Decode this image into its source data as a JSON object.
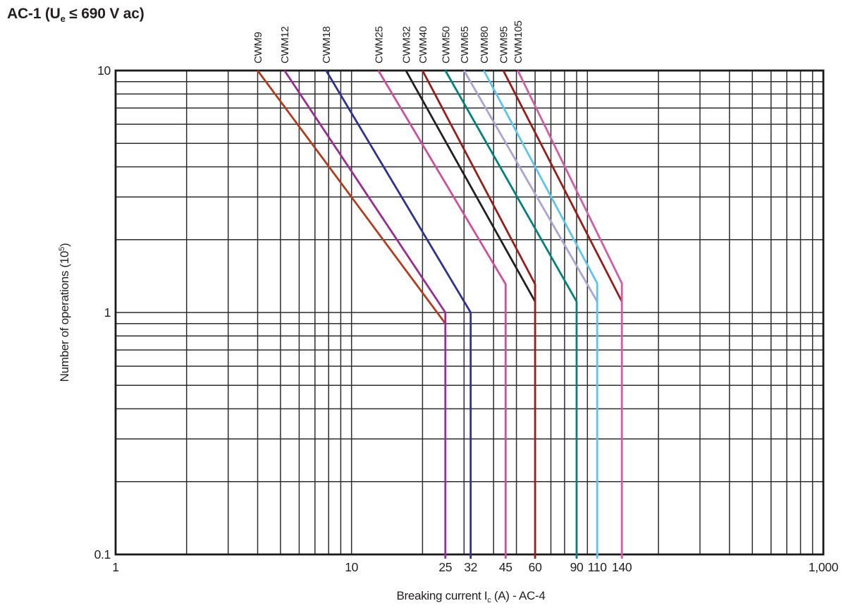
{
  "title": {
    "prefix": "AC-1 (U",
    "subscript": "e",
    "suffix": " ≤ 690 V ac)"
  },
  "chart_data": {
    "type": "line",
    "scale": "log-log",
    "x_axis": {
      "title": {
        "prefix": "Breaking current I",
        "subscript": "c",
        "suffix": " (A) - AC-4"
      },
      "scale": "log",
      "range": [
        1,
        1000
      ],
      "ticks": [
        {
          "value": 1,
          "label": "1"
        },
        {
          "value": 10,
          "label": "10"
        },
        {
          "value": 25,
          "label": "25"
        },
        {
          "value": 32,
          "label": "32"
        },
        {
          "value": 45,
          "label": "45"
        },
        {
          "value": 60,
          "label": "60"
        },
        {
          "value": 90,
          "label": "90"
        },
        {
          "value": 110,
          "label": "110"
        },
        {
          "value": 140,
          "label": "140"
        },
        {
          "value": 1000,
          "label": "1,000"
        }
      ],
      "minor_gridlines": [
        2,
        3,
        4,
        5,
        6,
        7,
        8,
        9,
        10,
        20,
        30,
        40,
        50,
        60,
        70,
        80,
        90,
        100,
        200,
        300,
        400,
        500,
        600,
        700,
        800,
        900
      ]
    },
    "y_axis": {
      "title": {
        "prefix": "Number of operations (10",
        "superscript": "5",
        "suffix": ")"
      },
      "scale": "log",
      "range": [
        0.1,
        10
      ],
      "ticks": [
        {
          "value": 10,
          "label": "10"
        },
        {
          "value": 1,
          "label": "1"
        },
        {
          "value": 0.1,
          "label": "0.1"
        }
      ],
      "minor_gridlines": [
        0.2,
        0.3,
        0.4,
        0.5,
        0.6,
        0.7,
        0.8,
        0.9,
        1,
        2,
        3,
        4,
        5,
        6,
        7,
        8,
        9
      ]
    },
    "grid": "on",
    "grid_color": "#2d2d2d",
    "border_color": "#1a1a1a",
    "legend_position": "labels-above-curves",
    "series": [
      {
        "name": "CWM9",
        "color": "#b23c1e",
        "points": [
          [
            4.0,
            10
          ],
          [
            25,
            0.9
          ]
        ],
        "drops_below_axis": false
      },
      {
        "name": "CWM12",
        "color": "#982d98",
        "points": [
          [
            5.2,
            10
          ],
          [
            25,
            1.0
          ],
          [
            25,
            0.1
          ]
        ],
        "drops_below_axis": true
      },
      {
        "name": "CWM18",
        "color": "#2e3192",
        "points": [
          [
            7.8,
            10
          ],
          [
            32,
            1.0
          ],
          [
            32,
            0.1
          ]
        ],
        "drops_below_axis": true
      },
      {
        "name": "CWM25",
        "color": "#cf4f9e",
        "points": [
          [
            13,
            10
          ],
          [
            45,
            1.31
          ],
          [
            45,
            0.1
          ]
        ],
        "drops_below_axis": true
      },
      {
        "name": "CWM32",
        "color": "#231f20",
        "points": [
          [
            17,
            10
          ],
          [
            60,
            1.11
          ]
        ],
        "drops_below_axis": false
      },
      {
        "name": "CWM40",
        "color": "#9b1b1b",
        "points": [
          [
            20,
            10
          ],
          [
            60,
            1.31
          ],
          [
            60,
            0.1
          ]
        ],
        "drops_below_axis": true
      },
      {
        "name": "CWM50",
        "color": "#00827e",
        "points": [
          [
            25,
            10
          ],
          [
            90,
            1.11
          ],
          [
            90,
            0.1
          ]
        ],
        "drops_below_axis": true
      },
      {
        "name": "CWM65",
        "color": "#a9a4d6",
        "points": [
          [
            30,
            10
          ],
          [
            110,
            1.11
          ]
        ],
        "drops_below_axis": false
      },
      {
        "name": "CWM80",
        "color": "#5bc5f2",
        "points": [
          [
            36.4,
            10
          ],
          [
            110,
            1.32
          ],
          [
            110,
            0.1
          ]
        ],
        "drops_below_axis": true
      },
      {
        "name": "CWM95",
        "color": "#9b1b1b",
        "points": [
          [
            44,
            10
          ],
          [
            140,
            1.11
          ]
        ],
        "drops_below_axis": false
      },
      {
        "name": "CWM105",
        "color": "#d35ca8",
        "points": [
          [
            50.7,
            10
          ],
          [
            140,
            1.32
          ],
          [
            140,
            0.1
          ]
        ],
        "drops_below_axis": true
      }
    ]
  }
}
